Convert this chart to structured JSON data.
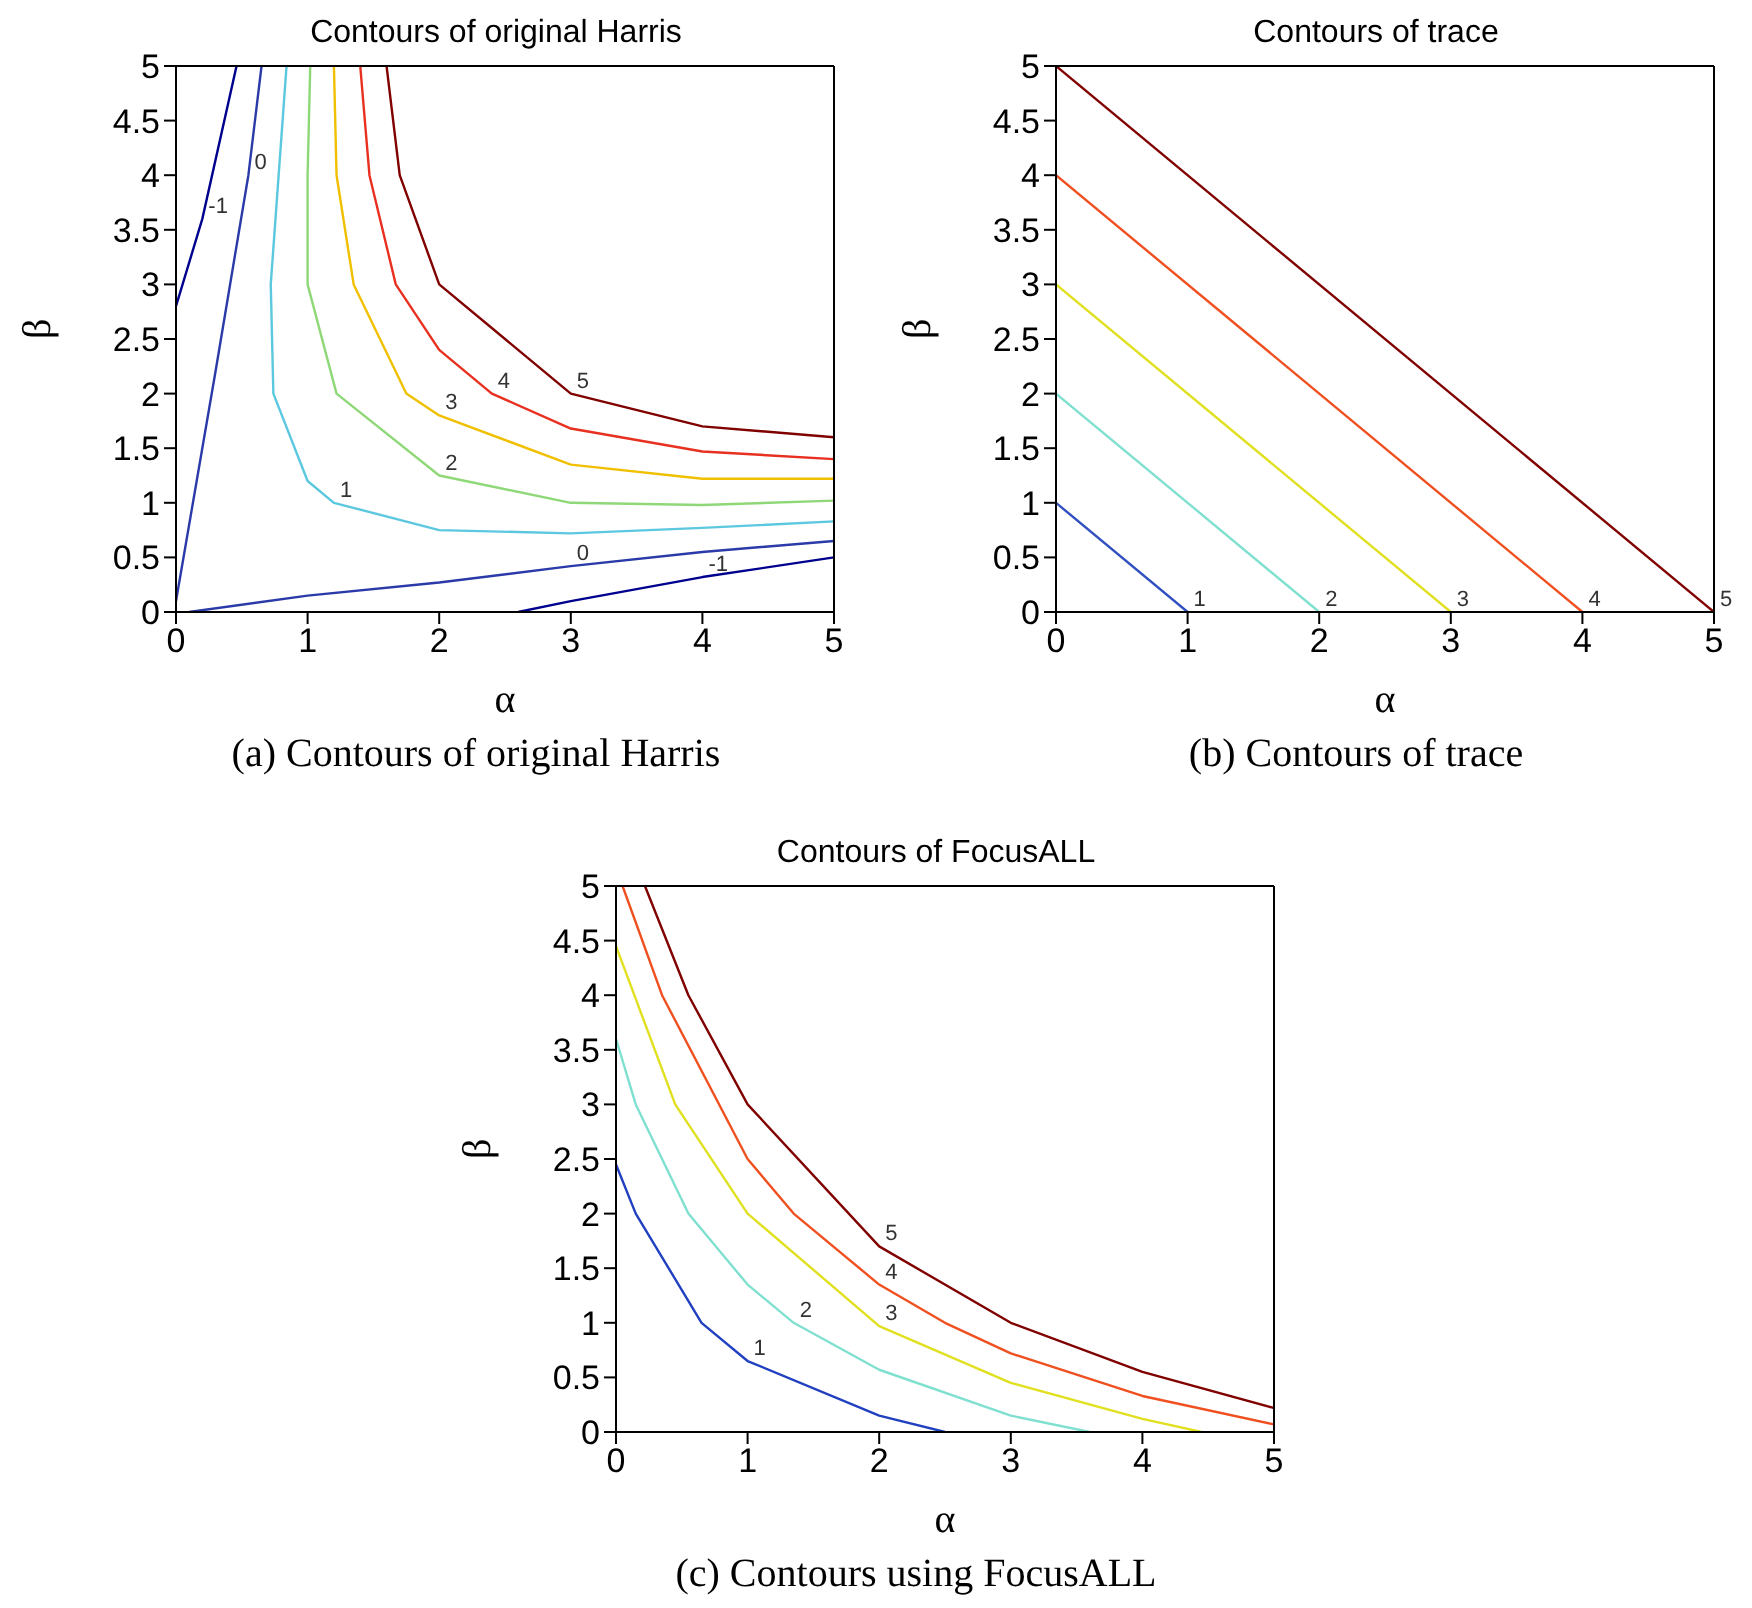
{
  "chart_data": [
    {
      "type": "line",
      "title": "Contours of original Harris",
      "xlabel": "α",
      "ylabel": "β",
      "xlim": [
        0,
        5
      ],
      "ylim": [
        0,
        5
      ],
      "xticks": [
        0,
        1,
        2,
        3,
        4,
        5
      ],
      "yticks": [
        0,
        0.5,
        1,
        1.5,
        2,
        2.5,
        3,
        3.5,
        4,
        4.5,
        5
      ],
      "annotations": [
        "(a) Contours of original Harris"
      ],
      "series": [
        {
          "name": "-1",
          "color": "#00008f",
          "x": [
            0,
            0.2,
            0.46
          ],
          "values": [
            2.8,
            3.6,
            5
          ]
        },
        {
          "name": "-1",
          "color": "#00008f",
          "x": [
            2.6,
            3,
            4,
            5
          ],
          "values": [
            0,
            0.1,
            0.32,
            0.5
          ]
        },
        {
          "name": "0",
          "color": "#2a3aa8",
          "x": [
            0,
            0.3,
            0.55,
            0.65
          ],
          "values": [
            0.1,
            2.2,
            4,
            5
          ]
        },
        {
          "name": "0",
          "color": "#2a3aa8",
          "x": [
            0.1,
            1,
            2,
            3,
            4,
            5
          ],
          "values": [
            0,
            0.15,
            0.27,
            0.42,
            0.55,
            0.65
          ]
        },
        {
          "name": "1",
          "color": "#5bc8e0",
          "x": [
            0.84,
            0.72,
            0.74,
            1,
            1.2,
            2,
            3,
            4,
            5
          ],
          "values": [
            5,
            3,
            2,
            1.2,
            1,
            0.75,
            0.72,
            0.77,
            0.83
          ]
        },
        {
          "name": "2",
          "color": "#8fd878",
          "x": [
            1.02,
            1,
            1,
            1.22,
            2,
            3,
            4,
            5
          ],
          "values": [
            5,
            4,
            3,
            2,
            1.25,
            1,
            0.98,
            1.02
          ]
        },
        {
          "name": "3",
          "color": "#f0c000",
          "x": [
            1.2,
            1.22,
            1.35,
            1.75,
            2,
            3,
            4,
            5
          ],
          "values": [
            5,
            4,
            3,
            2,
            1.8,
            1.35,
            1.22,
            1.22
          ]
        },
        {
          "name": "4",
          "color": "#e83020",
          "x": [
            1.4,
            1.47,
            1.67,
            2,
            2.4,
            3,
            4,
            5
          ],
          "values": [
            5,
            4,
            3,
            2.4,
            2,
            1.68,
            1.47,
            1.4
          ]
        },
        {
          "name": "5",
          "color": "#800000",
          "x": [
            1.6,
            1.7,
            2,
            3,
            4,
            5
          ],
          "values": [
            5,
            4,
            3,
            2,
            1.7,
            1.6
          ]
        }
      ]
    },
    {
      "type": "line",
      "title": "Contours of trace",
      "xlabel": "α",
      "ylabel": "β",
      "xlim": [
        0,
        5
      ],
      "ylim": [
        0,
        5
      ],
      "xticks": [
        0,
        1,
        2,
        3,
        4,
        5
      ],
      "yticks": [
        0,
        0.5,
        1,
        1.5,
        2,
        2.5,
        3,
        3.5,
        4,
        4.5,
        5
      ],
      "annotations": [
        "(b) Contours of trace"
      ],
      "series": [
        {
          "name": "1",
          "color": "#3050c0",
          "x": [
            0,
            1
          ],
          "values": [
            1,
            0
          ]
        },
        {
          "name": "2",
          "color": "#80e0d0",
          "x": [
            0,
            2
          ],
          "values": [
            2,
            0
          ]
        },
        {
          "name": "3",
          "color": "#e0e020",
          "x": [
            0,
            3
          ],
          "values": [
            3,
            0
          ]
        },
        {
          "name": "4",
          "color": "#f05020",
          "x": [
            0,
            4
          ],
          "values": [
            4,
            0
          ]
        },
        {
          "name": "5",
          "color": "#800000",
          "x": [
            0,
            5
          ],
          "values": [
            5,
            0
          ]
        }
      ]
    },
    {
      "type": "line",
      "title": "Contours of FocusALL",
      "xlabel": "α",
      "ylabel": "β",
      "xlim": [
        0,
        5
      ],
      "ylim": [
        0,
        5
      ],
      "xticks": [
        0,
        1,
        2,
        3,
        4,
        5
      ],
      "yticks": [
        0,
        0.5,
        1,
        1.5,
        2,
        2.5,
        3,
        3.5,
        4,
        4.5,
        5
      ],
      "annotations": [
        "(c) Contours using FocusALL"
      ],
      "series": [
        {
          "name": "1",
          "color": "#2040c0",
          "x": [
            0,
            0.15,
            0.65,
            1,
            2,
            2.5
          ],
          "values": [
            2.45,
            2,
            1,
            0.65,
            0.15,
            0
          ]
        },
        {
          "name": "2",
          "color": "#80e0d0",
          "x": [
            0,
            0.15,
            0.55,
            1,
            1.35,
            2,
            3,
            3.6
          ],
          "values": [
            3.6,
            3,
            2,
            1.35,
            1,
            0.57,
            0.15,
            0
          ]
        },
        {
          "name": "3",
          "color": "#e0e020",
          "x": [
            0,
            0.45,
            1,
            2,
            3,
            4,
            4.45
          ],
          "values": [
            4.45,
            3,
            2,
            0.97,
            0.45,
            0.12,
            0
          ]
        },
        {
          "name": "4",
          "color": "#f05020",
          "x": [
            0.05,
            0.35,
            1,
            1.35,
            2,
            2.5,
            3,
            4,
            5
          ],
          "values": [
            5,
            4,
            2.5,
            2,
            1.35,
            1,
            0.72,
            0.33,
            0.07
          ]
        },
        {
          "name": "5",
          "color": "#800000",
          "x": [
            0.22,
            0.55,
            1,
            2,
            3,
            4,
            5
          ],
          "values": [
            5,
            4,
            3,
            1.7,
            1,
            0.55,
            0.22
          ]
        }
      ]
    }
  ]
}
